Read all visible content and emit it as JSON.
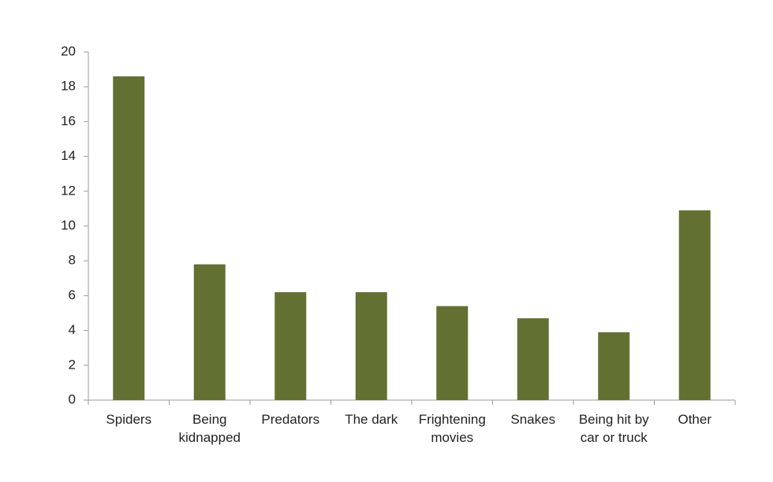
{
  "chart_data": {
    "type": "bar",
    "categories": [
      "Spiders",
      "Being kidnapped",
      "Predators",
      "The dark",
      "Frightening movies",
      "Snakes",
      "Being hit by car or truck",
      "Other"
    ],
    "values": [
      18.6,
      7.8,
      6.2,
      6.2,
      5.4,
      4.7,
      3.9,
      10.9
    ],
    "color": "#627131",
    "ylim": [
      0,
      20
    ],
    "yticks": [
      0,
      2,
      4,
      6,
      8,
      10,
      12,
      14,
      16,
      18,
      20
    ],
    "grid": false
  }
}
